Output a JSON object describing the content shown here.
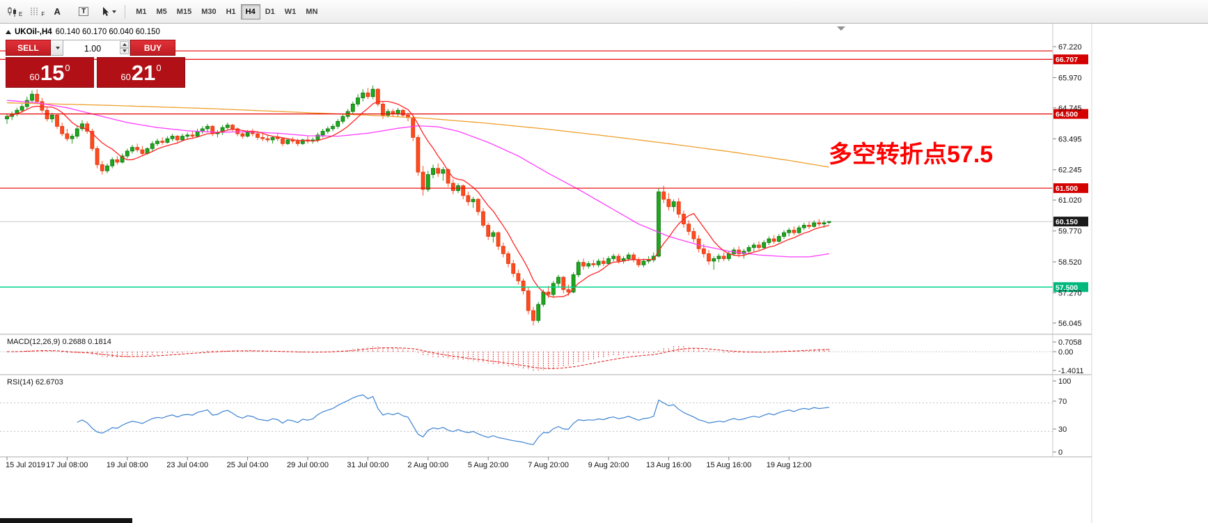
{
  "toolbar": {
    "sub_e": "E",
    "sub_f": "F",
    "letter_a": "A",
    "letter_t": "T",
    "timeframes": [
      "M1",
      "M5",
      "M15",
      "M30",
      "H1",
      "H4",
      "D1",
      "W1",
      "MN"
    ],
    "active_timeframe": "H4"
  },
  "quote_line": {
    "symbol": "UKOil-,H4",
    "ohlc": "60.140 60.170 60.040 60.150"
  },
  "trade_panel": {
    "sell_label": "SELL",
    "buy_label": "BUY",
    "volume": "1.00",
    "bid": {
      "prefix": "60",
      "big": "15",
      "sup": "0"
    },
    "ask": {
      "prefix": "60",
      "big": "21",
      "sup": "0"
    }
  },
  "annotation": {
    "text": "多空转折点57.5",
    "color": "#fe0000"
  },
  "macd": {
    "label_full": "MACD(12,26,9) 0.2688 0.1814",
    "scale": [
      "0.7058",
      "0.00",
      "-1.4011"
    ],
    "fast": 12,
    "slow": 26,
    "signal_period": 9
  },
  "rsi": {
    "label_full": "RSI(14) 62.6703",
    "scale": [
      "100",
      "70",
      "30",
      "0"
    ],
    "period": 14
  },
  "chart_data": {
    "type": "candlestick",
    "symbol": "UKOil-",
    "timeframe": "H4",
    "last_ohlc": {
      "open": 60.14,
      "high": 60.17,
      "low": 60.04,
      "close": 60.15
    },
    "price_axis": {
      "ticks": [
        67.22,
        65.97,
        64.745,
        63.495,
        62.245,
        61.02,
        59.77,
        58.52,
        57.27,
        56.045
      ],
      "tags": [
        {
          "label": "66.707",
          "price": 66.707,
          "color": "#d40000"
        },
        {
          "label": "64.500",
          "price": 64.5,
          "color": "#d40000"
        },
        {
          "label": "61.500",
          "price": 61.5,
          "color": "#d40000"
        },
        {
          "label": "60.150",
          "price": 60.15,
          "color": "#1a1a1a"
        },
        {
          "label": "57.500",
          "price": 57.5,
          "color": "#00b87c"
        }
      ]
    },
    "hlines": [
      {
        "price": 67.05,
        "color": "#e60000",
        "width": 1.2
      },
      {
        "price": 66.707,
        "color": "#e60000",
        "width": 1.2
      },
      {
        "price": 64.5,
        "color": "#e60000",
        "width": 1.2
      },
      {
        "price": 61.5,
        "color": "#e60000",
        "width": 1.2
      },
      {
        "price": 60.15,
        "color": "#c8c8c8",
        "width": 1
      },
      {
        "price": 57.5,
        "color": "#00d68a",
        "width": 1.4
      }
    ],
    "x_labels": [
      {
        "bar": 0,
        "text": "15 Jul 2019"
      },
      {
        "bar": 12,
        "text": "17 Jul 08:00"
      },
      {
        "bar": 24,
        "text": "19 Jul 08:00"
      },
      {
        "bar": 36,
        "text": "23 Jul 04:00"
      },
      {
        "bar": 48,
        "text": "25 Jul 04:00"
      },
      {
        "bar": 60,
        "text": "29 Jul 00:00"
      },
      {
        "bar": 72,
        "text": "31 Jul 00:00"
      },
      {
        "bar": 84,
        "text": "2 Aug 00:00"
      },
      {
        "bar": 96,
        "text": "5 Aug 20:00"
      },
      {
        "bar": 108,
        "text": "7 Aug 20:00"
      },
      {
        "bar": 120,
        "text": "9 Aug 20:00"
      },
      {
        "bar": 132,
        "text": "13 Aug 16:00"
      },
      {
        "bar": 144,
        "text": "15 Aug 16:00"
      },
      {
        "bar": 156,
        "text": "19 Aug 12:00"
      }
    ],
    "moving_averages": [
      {
        "name": "slow-orange",
        "color": "#efa02e",
        "points": [
          [
            0,
            64.95
          ],
          [
            20,
            64.85
          ],
          [
            40,
            64.72
          ],
          [
            60,
            64.55
          ],
          [
            72,
            64.45
          ],
          [
            84,
            64.32
          ],
          [
            96,
            64.12
          ],
          [
            108,
            63.88
          ],
          [
            120,
            63.6
          ],
          [
            132,
            63.3
          ],
          [
            144,
            62.98
          ],
          [
            156,
            62.62
          ],
          [
            164,
            62.35
          ]
        ]
      },
      {
        "name": "mid-magenta",
        "color": "#ff3dff",
        "points": [
          [
            0,
            65.05
          ],
          [
            6,
            64.95
          ],
          [
            12,
            64.75
          ],
          [
            18,
            64.45
          ],
          [
            24,
            64.15
          ],
          [
            30,
            63.95
          ],
          [
            36,
            63.82
          ],
          [
            42,
            63.76
          ],
          [
            48,
            63.78
          ],
          [
            54,
            63.72
          ],
          [
            60,
            63.62
          ],
          [
            66,
            63.6
          ],
          [
            72,
            63.72
          ],
          [
            78,
            63.92
          ],
          [
            82,
            64.02
          ],
          [
            86,
            63.98
          ],
          [
            90,
            63.8
          ],
          [
            96,
            63.35
          ],
          [
            102,
            62.8
          ],
          [
            108,
            62.1
          ],
          [
            114,
            61.45
          ],
          [
            120,
            60.75
          ],
          [
            126,
            60.05
          ],
          [
            132,
            59.55
          ],
          [
            138,
            59.2
          ],
          [
            144,
            58.95
          ],
          [
            150,
            58.8
          ],
          [
            156,
            58.72
          ],
          [
            160,
            58.72
          ],
          [
            164,
            58.85
          ]
        ]
      },
      {
        "name": "fast-red",
        "color": "#ff2222",
        "period": 8
      }
    ],
    "candles": [
      [
        64.3,
        64.5,
        64.1,
        64.4
      ],
      [
        64.4,
        64.6,
        64.25,
        64.5
      ],
      [
        64.5,
        64.75,
        64.4,
        64.65
      ],
      [
        64.65,
        64.9,
        64.55,
        64.8
      ],
      [
        64.8,
        65.2,
        64.7,
        65.05
      ],
      [
        65.05,
        65.45,
        64.95,
        65.3
      ],
      [
        65.3,
        65.5,
        64.9,
        65.0
      ],
      [
        65.0,
        65.15,
        64.55,
        64.65
      ],
      [
        64.65,
        64.8,
        64.2,
        64.3
      ],
      [
        64.3,
        64.55,
        64.15,
        64.45
      ],
      [
        64.45,
        64.5,
        63.9,
        64.0
      ],
      [
        64.0,
        64.15,
        63.6,
        63.7
      ],
      [
        63.7,
        63.9,
        63.4,
        63.5
      ],
      [
        63.5,
        63.7,
        63.3,
        63.6
      ],
      [
        63.6,
        64.0,
        63.5,
        63.9
      ],
      [
        63.9,
        64.25,
        63.8,
        64.1
      ],
      [
        64.1,
        64.2,
        63.7,
        63.8
      ],
      [
        63.8,
        63.9,
        63.0,
        63.1
      ],
      [
        63.1,
        63.2,
        62.3,
        62.45
      ],
      [
        62.45,
        62.6,
        62.05,
        62.2
      ],
      [
        62.2,
        62.5,
        62.1,
        62.4
      ],
      [
        62.4,
        62.75,
        62.3,
        62.65
      ],
      [
        62.65,
        62.8,
        62.45,
        62.55
      ],
      [
        62.55,
        62.9,
        62.5,
        62.8
      ],
      [
        62.8,
        63.1,
        62.7,
        63.0
      ],
      [
        63.0,
        63.25,
        62.9,
        63.15
      ],
      [
        63.15,
        63.3,
        62.95,
        63.05
      ],
      [
        63.05,
        63.2,
        62.8,
        62.9
      ],
      [
        62.9,
        63.15,
        62.85,
        63.1
      ],
      [
        63.1,
        63.4,
        63.0,
        63.3
      ],
      [
        63.3,
        63.5,
        63.2,
        63.4
      ],
      [
        63.4,
        63.55,
        63.25,
        63.35
      ],
      [
        63.35,
        63.6,
        63.3,
        63.5
      ],
      [
        63.5,
        63.7,
        63.4,
        63.6
      ],
      [
        63.6,
        63.65,
        63.35,
        63.45
      ],
      [
        63.45,
        63.7,
        63.4,
        63.6
      ],
      [
        63.6,
        63.75,
        63.45,
        63.65
      ],
      [
        63.65,
        63.8,
        63.5,
        63.6
      ],
      [
        63.6,
        63.9,
        63.55,
        63.8
      ],
      [
        63.8,
        64.0,
        63.7,
        63.9
      ],
      [
        63.9,
        64.1,
        63.75,
        64.0
      ],
      [
        64.0,
        64.05,
        63.6,
        63.7
      ],
      [
        63.7,
        63.85,
        63.55,
        63.75
      ],
      [
        63.75,
        64.05,
        63.65,
        63.95
      ],
      [
        63.95,
        64.15,
        63.85,
        64.05
      ],
      [
        64.05,
        64.1,
        63.8,
        63.9
      ],
      [
        63.9,
        63.95,
        63.6,
        63.7
      ],
      [
        63.7,
        63.8,
        63.5,
        63.6
      ],
      [
        63.6,
        63.85,
        63.55,
        63.75
      ],
      [
        63.75,
        63.9,
        63.6,
        63.7
      ],
      [
        63.7,
        63.8,
        63.45,
        63.55
      ],
      [
        63.55,
        63.7,
        63.4,
        63.5
      ],
      [
        63.5,
        63.65,
        63.35,
        63.45
      ],
      [
        63.45,
        63.6,
        63.3,
        63.55
      ],
      [
        63.55,
        63.7,
        63.4,
        63.5
      ],
      [
        63.5,
        63.55,
        63.2,
        63.3
      ],
      [
        63.3,
        63.5,
        63.25,
        63.45
      ],
      [
        63.45,
        63.55,
        63.3,
        63.4
      ],
      [
        63.4,
        63.5,
        63.2,
        63.3
      ],
      [
        63.3,
        63.5,
        63.25,
        63.45
      ],
      [
        63.45,
        63.6,
        63.3,
        63.4
      ],
      [
        63.4,
        63.55,
        63.3,
        63.45
      ],
      [
        63.45,
        63.75,
        63.35,
        63.65
      ],
      [
        63.65,
        63.9,
        63.55,
        63.8
      ],
      [
        63.8,
        64.0,
        63.7,
        63.9
      ],
      [
        63.9,
        64.1,
        63.8,
        64.0
      ],
      [
        64.0,
        64.3,
        63.9,
        64.2
      ],
      [
        64.2,
        64.5,
        64.1,
        64.4
      ],
      [
        64.4,
        64.7,
        64.3,
        64.6
      ],
      [
        64.6,
        65.0,
        64.5,
        64.9
      ],
      [
        64.9,
        65.3,
        64.8,
        65.15
      ],
      [
        65.15,
        65.5,
        65.0,
        65.35
      ],
      [
        65.35,
        65.55,
        65.1,
        65.2
      ],
      [
        65.2,
        65.65,
        65.1,
        65.5
      ],
      [
        65.5,
        65.55,
        64.8,
        64.9
      ],
      [
        64.9,
        65.0,
        64.3,
        64.45
      ],
      [
        64.45,
        64.7,
        64.35,
        64.6
      ],
      [
        64.6,
        64.7,
        64.4,
        64.5
      ],
      [
        64.5,
        64.75,
        64.4,
        64.65
      ],
      [
        64.65,
        64.7,
        64.35,
        64.45
      ],
      [
        64.45,
        64.55,
        64.2,
        64.35
      ],
      [
        64.35,
        64.4,
        63.4,
        63.55
      ],
      [
        63.55,
        63.65,
        62.0,
        62.15
      ],
      [
        62.15,
        62.4,
        61.2,
        61.45
      ],
      [
        61.45,
        62.2,
        61.35,
        62.05
      ],
      [
        62.05,
        62.45,
        61.9,
        62.3
      ],
      [
        62.3,
        62.5,
        61.95,
        62.1
      ],
      [
        62.1,
        62.35,
        61.8,
        62.25
      ],
      [
        62.25,
        62.3,
        61.55,
        61.7
      ],
      [
        61.7,
        61.85,
        61.25,
        61.4
      ],
      [
        61.4,
        61.7,
        61.3,
        61.6
      ],
      [
        61.6,
        61.65,
        61.05,
        61.2
      ],
      [
        61.2,
        61.35,
        60.8,
        60.95
      ],
      [
        60.95,
        61.15,
        60.7,
        61.05
      ],
      [
        61.05,
        61.1,
        60.4,
        60.55
      ],
      [
        60.55,
        60.7,
        59.9,
        60.0
      ],
      [
        60.0,
        60.1,
        59.4,
        59.55
      ],
      [
        59.55,
        59.8,
        59.3,
        59.7
      ],
      [
        59.7,
        59.75,
        59.0,
        59.15
      ],
      [
        59.15,
        59.3,
        58.7,
        58.85
      ],
      [
        58.85,
        58.95,
        58.3,
        58.45
      ],
      [
        58.45,
        58.6,
        57.9,
        58.05
      ],
      [
        58.05,
        58.2,
        57.6,
        57.75
      ],
      [
        57.75,
        57.85,
        57.2,
        57.35
      ],
      [
        57.35,
        57.5,
        56.4,
        56.55
      ],
      [
        56.55,
        56.7,
        55.95,
        56.15
      ],
      [
        56.15,
        56.9,
        56.05,
        56.8
      ],
      [
        56.8,
        57.4,
        56.7,
        57.3
      ],
      [
        57.3,
        57.55,
        57.05,
        57.2
      ],
      [
        57.2,
        57.75,
        57.1,
        57.65
      ],
      [
        57.65,
        58.0,
        57.5,
        57.9
      ],
      [
        57.9,
        57.95,
        57.25,
        57.4
      ],
      [
        57.4,
        57.6,
        57.15,
        57.3
      ],
      [
        57.3,
        58.1,
        57.25,
        58.0
      ],
      [
        58.0,
        58.6,
        57.9,
        58.5
      ],
      [
        58.5,
        58.65,
        58.2,
        58.35
      ],
      [
        58.35,
        58.55,
        58.25,
        58.45
      ],
      [
        58.45,
        58.6,
        58.3,
        58.4
      ],
      [
        58.4,
        58.65,
        58.3,
        58.55
      ],
      [
        58.55,
        58.7,
        58.35,
        58.45
      ],
      [
        58.45,
        58.75,
        58.4,
        58.65
      ],
      [
        58.65,
        58.85,
        58.55,
        58.75
      ],
      [
        58.75,
        58.85,
        58.45,
        58.55
      ],
      [
        58.55,
        58.75,
        58.45,
        58.65
      ],
      [
        58.65,
        58.9,
        58.55,
        58.8
      ],
      [
        58.8,
        58.9,
        58.5,
        58.6
      ],
      [
        58.6,
        58.7,
        58.3,
        58.4
      ],
      [
        58.4,
        58.65,
        58.3,
        58.55
      ],
      [
        58.55,
        58.75,
        58.45,
        58.6
      ],
      [
        58.6,
        58.9,
        58.5,
        58.75
      ],
      [
        58.75,
        61.5,
        58.7,
        61.35
      ],
      [
        61.35,
        61.6,
        60.9,
        61.05
      ],
      [
        61.05,
        61.3,
        60.6,
        60.75
      ],
      [
        60.75,
        61.05,
        60.55,
        60.95
      ],
      [
        60.95,
        61.1,
        60.3,
        60.45
      ],
      [
        60.45,
        60.6,
        59.9,
        60.05
      ],
      [
        60.05,
        60.2,
        59.6,
        59.75
      ],
      [
        59.75,
        59.9,
        59.3,
        59.45
      ],
      [
        59.45,
        59.6,
        58.9,
        59.05
      ],
      [
        59.05,
        59.25,
        58.7,
        58.85
      ],
      [
        58.85,
        59.0,
        58.4,
        58.55
      ],
      [
        58.55,
        58.75,
        58.2,
        58.65
      ],
      [
        58.65,
        58.85,
        58.5,
        58.75
      ],
      [
        58.75,
        58.9,
        58.55,
        58.65
      ],
      [
        58.65,
        58.95,
        58.55,
        58.85
      ],
      [
        58.85,
        59.1,
        58.75,
        59.0
      ],
      [
        59.0,
        59.15,
        58.7,
        58.85
      ],
      [
        58.85,
        59.05,
        58.65,
        58.95
      ],
      [
        58.95,
        59.2,
        58.85,
        59.1
      ],
      [
        59.1,
        59.3,
        58.95,
        59.2
      ],
      [
        59.2,
        59.35,
        59.0,
        59.1
      ],
      [
        59.1,
        59.4,
        59.05,
        59.3
      ],
      [
        59.3,
        59.55,
        59.2,
        59.45
      ],
      [
        59.45,
        59.6,
        59.25,
        59.35
      ],
      [
        59.35,
        59.65,
        59.3,
        59.55
      ],
      [
        59.55,
        59.8,
        59.45,
        59.7
      ],
      [
        59.7,
        59.9,
        59.55,
        59.8
      ],
      [
        59.8,
        59.95,
        59.6,
        59.7
      ],
      [
        59.7,
        60.0,
        59.65,
        59.9
      ],
      [
        59.9,
        60.1,
        59.8,
        60.0
      ],
      [
        60.0,
        60.15,
        59.85,
        59.95
      ],
      [
        59.95,
        60.2,
        59.9,
        60.1
      ],
      [
        60.1,
        60.25,
        59.95,
        60.05
      ],
      [
        60.05,
        60.2,
        59.9,
        60.1
      ],
      [
        60.14,
        60.17,
        60.04,
        60.15
      ]
    ]
  }
}
